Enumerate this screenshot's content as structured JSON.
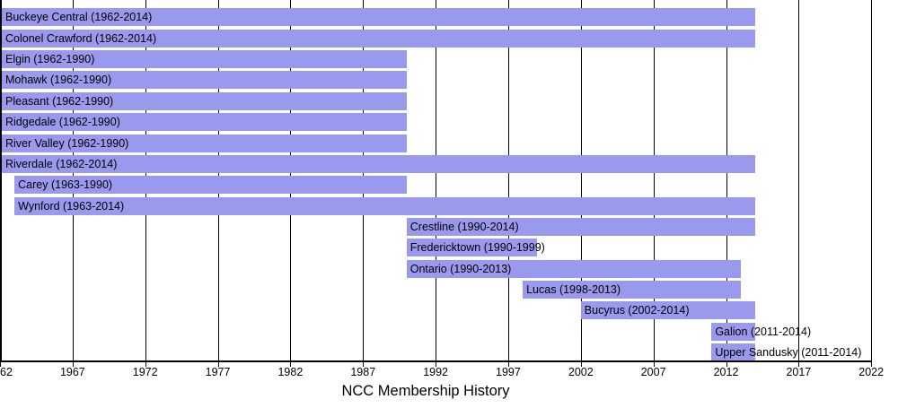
{
  "chart_data": {
    "type": "bar",
    "variant": "timeline-gantt",
    "title": "NCC Membership History",
    "bar_color": "#9999ee",
    "axis_color": "#000000",
    "grid_on": true,
    "x_axis": {
      "min": 1962,
      "max": 2022,
      "tick_step": 5,
      "ticks": [
        1962,
        1967,
        1972,
        1977,
        1982,
        1987,
        1992,
        1997,
        2002,
        2007,
        2012,
        2017,
        2022
      ],
      "tick_labels": [
        "1962",
        "1967",
        "1972",
        "1977",
        "1982",
        "1987",
        "1992",
        "1997",
        "2002",
        "2007",
        "2012",
        "2017",
        "2022"
      ]
    },
    "rows": [
      {
        "name": "Buckeye Central",
        "start": 1962,
        "end": 2014,
        "label": "Buckeye Central (1962-2014)"
      },
      {
        "name": "Colonel Crawford",
        "start": 1962,
        "end": 2014,
        "label": "Colonel Crawford (1962-2014)"
      },
      {
        "name": "Elgin",
        "start": 1962,
        "end": 1990,
        "label": "Elgin (1962-1990)"
      },
      {
        "name": "Mohawk",
        "start": 1962,
        "end": 1990,
        "label": "Mohawk (1962-1990)"
      },
      {
        "name": "Pleasant",
        "start": 1962,
        "end": 1990,
        "label": "Pleasant (1962-1990)"
      },
      {
        "name": "Ridgedale",
        "start": 1962,
        "end": 1990,
        "label": "Ridgedale (1962-1990)"
      },
      {
        "name": "River Valley",
        "start": 1962,
        "end": 1990,
        "label": "River Valley (1962-1990)"
      },
      {
        "name": "Riverdale",
        "start": 1962,
        "end": 2014,
        "label": "Riverdale (1962-2014)"
      },
      {
        "name": "Carey",
        "start": 1963,
        "end": 1990,
        "label": "Carey (1963-1990)"
      },
      {
        "name": "Wynford",
        "start": 1963,
        "end": 2014,
        "label": "Wynford (1963-2014)"
      },
      {
        "name": "Crestline",
        "start": 1990,
        "end": 2014,
        "label": "Crestline (1990-2014)"
      },
      {
        "name": "Fredericktown",
        "start": 1990,
        "end": 1999,
        "label": "Fredericktown (1990-1999)"
      },
      {
        "name": "Ontario",
        "start": 1990,
        "end": 2013,
        "label": "Ontario (1990-2013)"
      },
      {
        "name": "Lucas",
        "start": 1998,
        "end": 2013,
        "label": "Lucas (1998-2013)"
      },
      {
        "name": "Bucyrus",
        "start": 2002,
        "end": 2014,
        "label": "Bucyrus (2002-2014)"
      },
      {
        "name": "Galion",
        "start": 2011,
        "end": 2014,
        "label": "Galion (2011-2014)"
      },
      {
        "name": "Upper Sandusky",
        "start": 2011,
        "end": 2014,
        "label": "Upper Sandusky (2011-2014)"
      }
    ]
  }
}
